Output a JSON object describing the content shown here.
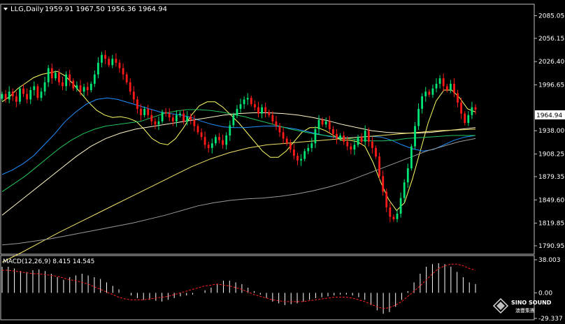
{
  "header": {
    "symbol_label": "LLG,Daily",
    "ohlc": "1959.91 1967.50 1956.36 1964.94"
  },
  "colors": {
    "background": "#000000",
    "frame": "#c0c0c0",
    "bull_candle": "#00e676",
    "bear_candle": "#ff1a1a",
    "price_box_bg": "#ffffff",
    "price_box_text": "#000000",
    "ma_fast": "#ffff66",
    "ma_mid1": "#1e90ff",
    "ma_mid2": "#22c55e",
    "ma_slow1": "#fff6c8",
    "ma_slow2": "#f1e26a",
    "ma_slow3": "#9a9a9a",
    "macd_hist": "#ffffff",
    "macd_signal": "#ff2020"
  },
  "chart_data": {
    "type": "candlestick",
    "price_axis_ticks": [
      "2085.05",
      "2056.15",
      "2026.40",
      "1996.65",
      "1938.00",
      "1908.25",
      "1879.35",
      "1849.60",
      "1819.85",
      "1790.95"
    ],
    "price_range": [
      1782,
      2098
    ],
    "current_price": "1964.94",
    "macd_indicator": {
      "label": "MACD(12,26,9) 8.415 14.545",
      "axis_ticks": [
        "38.003",
        "0.00",
        "-29.337"
      ],
      "range": [
        -29.337,
        38.003
      ]
    },
    "candle_closes": [
      1985,
      1978,
      1988,
      1982,
      1975,
      1992,
      1985,
      1978,
      1990,
      1995,
      1980,
      1988,
      2000,
      2018,
      2005,
      2012,
      2000,
      1995,
      2010,
      2002,
      1992,
      1996,
      1988,
      1994,
      1990,
      1998,
      2010,
      2025,
      2035,
      2030,
      2022,
      2030,
      2025,
      2018,
      2010,
      2000,
      1988,
      1978,
      1966,
      1958,
      1966,
      1958,
      1950,
      1946,
      1950,
      1962,
      1960,
      1955,
      1950,
      1958,
      1960,
      1950,
      1956,
      1952,
      1944,
      1936,
      1930,
      1920,
      1916,
      1922,
      1930,
      1926,
      1920,
      1932,
      1945,
      1958,
      1966,
      1972,
      1978,
      1980,
      1972,
      1968,
      1960,
      1968,
      1962,
      1958,
      1950,
      1944,
      1936,
      1928,
      1922,
      1914,
      1906,
      1900,
      1902,
      1912,
      1916,
      1922,
      1940,
      1952,
      1946,
      1950,
      1940,
      1934,
      1928,
      1932,
      1924,
      1918,
      1914,
      1920,
      1930,
      1924,
      1938,
      1924,
      1916,
      1905,
      1880,
      1860,
      1840,
      1828,
      1825,
      1832,
      1852,
      1872,
      1890,
      1918,
      1944,
      1966,
      1982,
      1988,
      1984,
      1992,
      1998,
      2005,
      1995,
      1990,
      1998,
      1986,
      1974,
      1960,
      1948,
      1958,
      1968,
      1964.94
    ],
    "moving_averages": [
      {
        "values": [
          1975,
          1982,
          1992,
          1999,
          2006,
          2010,
          2012,
          2014,
          2008,
          1998,
          1986,
          1974,
          1964,
          1958,
          1955,
          1956,
          1954,
          1950,
          1940,
          1928,
          1922,
          1920,
          1928,
          1942,
          1958,
          1970,
          1975,
          1975,
          1968,
          1958,
          1948,
          1936,
          1924,
          1912,
          1904,
          1904,
          1912,
          1924,
          1936,
          1942,
          1942,
          1938,
          1932,
          1926,
          1926,
          1924,
          1918,
          1898,
          1872,
          1850,
          1836,
          1846,
          1876,
          1912,
          1948,
          1976,
          1990,
          1990,
          1980,
          1966,
          1962
        ]
      },
      {
        "values": [
          1882,
          1888,
          1896,
          1906,
          1920,
          1934,
          1950,
          1962,
          1972,
          1978,
          1980,
          1978,
          1974,
          1970,
          1966,
          1962,
          1960,
          1958,
          1955,
          1950,
          1946,
          1943,
          1942,
          1942,
          1943,
          1944,
          1944,
          1942,
          1940,
          1937,
          1934,
          1931,
          1929,
          1929,
          1930,
          1931,
          1930,
          1926,
          1920,
          1915,
          1912,
          1914,
          1920,
          1926,
          1930,
          1932
        ]
      },
      {
        "values": [
          1860,
          1870,
          1880,
          1892,
          1904,
          1916,
          1926,
          1934,
          1940,
          1944,
          1946,
          1948,
          1950,
          1955,
          1960,
          1963,
          1965,
          1965,
          1964,
          1962,
          1959,
          1956,
          1952,
          1948,
          1944,
          1940,
          1937,
          1934,
          1932,
          1930,
          1928,
          1926,
          1925,
          1925,
          1926,
          1928,
          1929,
          1930,
          1931,
          1932,
          1932,
          1932
        ]
      },
      {
        "values": [
          1830,
          1845,
          1860,
          1875,
          1890,
          1905,
          1918,
          1928,
          1935,
          1940,
          1943,
          1946,
          1949,
          1952,
          1955,
          1958,
          1960,
          1961,
          1961,
          1960,
          1958,
          1955,
          1951,
          1946,
          1942,
          1938,
          1936,
          1935,
          1935,
          1936,
          1938,
          1940,
          1942
        ]
      },
      {
        "values": [
          1770,
          1782,
          1795,
          1808,
          1820,
          1832,
          1844,
          1856,
          1868,
          1880,
          1892,
          1902,
          1910,
          1916,
          1920,
          1922,
          1924,
          1926,
          1928,
          1930,
          1932,
          1934,
          1936,
          1938,
          1939,
          1940
        ]
      },
      {
        "values": [
          1792,
          1794,
          1797,
          1800,
          1804,
          1808,
          1812,
          1816,
          1820,
          1825,
          1830,
          1836,
          1842,
          1846,
          1849,
          1851,
          1852,
          1854,
          1857,
          1861,
          1866,
          1872,
          1880,
          1888,
          1896,
          1904,
          1912,
          1918,
          1924,
          1928
        ]
      }
    ],
    "macd_histogram": [
      30,
      30,
      28,
      25,
      24,
      26,
      27,
      25,
      22,
      18,
      15,
      18,
      20,
      22,
      20,
      18,
      16,
      12,
      8,
      4,
      0,
      -3,
      -6,
      -8,
      -8,
      -9,
      -10,
      -8,
      -6,
      -4,
      -3,
      -2,
      0,
      3,
      6,
      10,
      14,
      14,
      12,
      10,
      6,
      2,
      -2,
      -6,
      -10,
      -12,
      -14,
      -13,
      -12,
      -10,
      -8,
      -6,
      -5,
      -4,
      -3,
      -2,
      -2,
      -3,
      -5,
      -8,
      -14,
      -20,
      -24,
      -22,
      -16,
      -8,
      2,
      12,
      22,
      30,
      33,
      34,
      33,
      30,
      24,
      18,
      12,
      10
    ],
    "macd_signal": [
      26,
      26,
      25,
      24,
      23,
      22,
      22,
      21,
      20,
      19,
      17,
      15,
      14,
      12,
      10,
      7,
      4,
      1,
      -2,
      -5,
      -7,
      -8,
      -8,
      -8,
      -7,
      -6,
      -5,
      -4,
      -2,
      0,
      2,
      4,
      6,
      8,
      9,
      10,
      9,
      8,
      6,
      4,
      1,
      -2,
      -4,
      -6,
      -8,
      -9,
      -10,
      -10,
      -10,
      -10,
      -9,
      -8,
      -7,
      -6,
      -5,
      -5,
      -5,
      -6,
      -8,
      -10,
      -13,
      -16,
      -18,
      -17,
      -14,
      -10,
      -4,
      2,
      8,
      15,
      22,
      28,
      31,
      33,
      33,
      31,
      28,
      26
    ]
  },
  "watermark": {
    "brand": "SINO SOUND",
    "subtitle": "澳豐集團"
  }
}
